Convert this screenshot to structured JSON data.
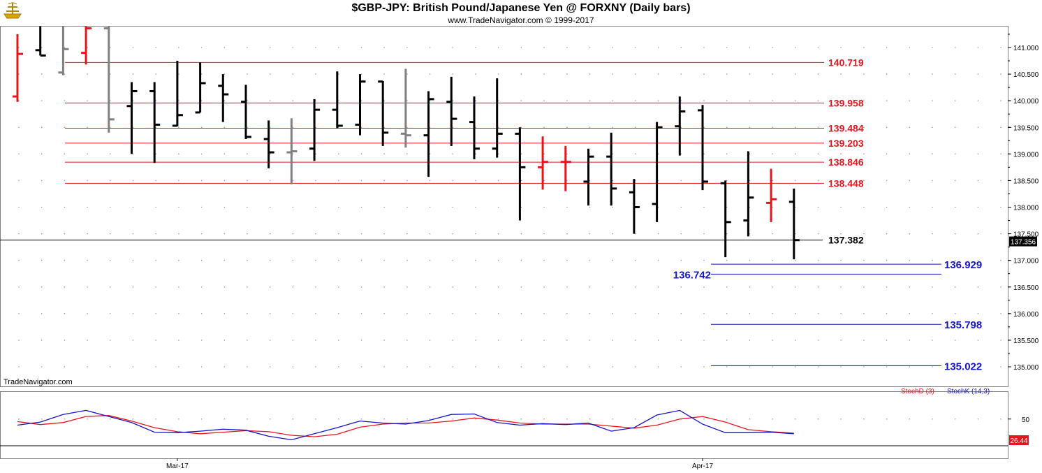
{
  "header": {
    "title": "$GBP-JPY:  British Pound/Japanese Yen @ FORXNY  (Daily bars)",
    "copyright": "www.TradeNavigator.com © 1999-2017"
  },
  "watermark": "TradeNavigator.com",
  "colors": {
    "up": "#000000",
    "down": "#e8141b",
    "neutral": "#808080",
    "resistance": "#e8141b",
    "support": "#1414c8",
    "stoch_d": "#e8141b",
    "stoch_k": "#1414c8"
  },
  "chart_data": [
    {
      "type": "bar",
      "title": "$GBP-JPY:  British Pound/Japanese Yen @ FORXNY  (Daily bars)",
      "ylim": [
        134.75,
        141.45
      ],
      "y_ticks": [
        "141.000",
        "140.500",
        "140.000",
        "139.500",
        "139.000",
        "138.500",
        "138.000",
        "137.500",
        "137.000",
        "136.500",
        "136.000",
        "135.500",
        "135.000"
      ],
      "x_labels": [
        {
          "label": "Mar-17",
          "bar": 7
        },
        {
          "label": "Apr-17",
          "bar": 30
        }
      ],
      "last_price": "137.356",
      "ohlc": [
        {
          "o": 140.08,
          "h": 141.25,
          "l": 139.98,
          "c": 140.88,
          "t": "down"
        },
        {
          "o": 140.95,
          "h": 141.4,
          "l": 140.85,
          "c": 140.85,
          "t": "up"
        },
        {
          "o": 140.53,
          "h": 141.4,
          "l": 140.48,
          "c": 140.97,
          "t": "neutral"
        },
        {
          "o": 140.9,
          "h": 141.4,
          "l": 140.68,
          "c": 141.36,
          "t": "down"
        },
        {
          "o": 141.36,
          "h": 141.4,
          "l": 139.4,
          "c": 139.65,
          "t": "neutral"
        },
        {
          "o": 139.9,
          "h": 140.35,
          "l": 139.0,
          "c": 140.18,
          "t": "up"
        },
        {
          "o": 140.18,
          "h": 140.35,
          "l": 138.83,
          "c": 139.55,
          "t": "up"
        },
        {
          "o": 139.53,
          "h": 140.75,
          "l": 139.52,
          "c": 139.73,
          "t": "up"
        },
        {
          "o": 139.78,
          "h": 140.72,
          "l": 139.78,
          "c": 140.33,
          "t": "up"
        },
        {
          "o": 140.28,
          "h": 140.5,
          "l": 139.6,
          "c": 140.12,
          "t": "up"
        },
        {
          "o": 139.98,
          "h": 140.3,
          "l": 139.28,
          "c": 139.32,
          "t": "up"
        },
        {
          "o": 139.28,
          "h": 139.63,
          "l": 138.73,
          "c": 139.03,
          "t": "up"
        },
        {
          "o": 139.03,
          "h": 139.67,
          "l": 138.43,
          "c": 139.05,
          "t": "neutral"
        },
        {
          "o": 139.1,
          "h": 140.03,
          "l": 138.87,
          "c": 139.83,
          "t": "up"
        },
        {
          "o": 139.83,
          "h": 140.55,
          "l": 139.48,
          "c": 139.53,
          "t": "up"
        },
        {
          "o": 139.55,
          "h": 140.5,
          "l": 139.35,
          "c": 140.36,
          "t": "up"
        },
        {
          "o": 140.36,
          "h": 140.37,
          "l": 139.15,
          "c": 139.4,
          "t": "up"
        },
        {
          "o": 139.38,
          "h": 140.6,
          "l": 139.12,
          "c": 139.35,
          "t": "neutral"
        },
        {
          "o": 139.35,
          "h": 140.18,
          "l": 138.57,
          "c": 140.03,
          "t": "up"
        },
        {
          "o": 139.98,
          "h": 140.45,
          "l": 139.15,
          "c": 139.66,
          "t": "up"
        },
        {
          "o": 139.6,
          "h": 140.08,
          "l": 138.9,
          "c": 139.1,
          "t": "up"
        },
        {
          "o": 139.1,
          "h": 140.42,
          "l": 138.93,
          "c": 139.38,
          "t": "up"
        },
        {
          "o": 139.38,
          "h": 139.5,
          "l": 137.75,
          "c": 138.75,
          "t": "up"
        },
        {
          "o": 138.75,
          "h": 139.33,
          "l": 138.33,
          "c": 138.85,
          "t": "down"
        },
        {
          "o": 138.85,
          "h": 139.15,
          "l": 138.3,
          "c": 138.85,
          "t": "down"
        },
        {
          "o": 138.48,
          "h": 139.1,
          "l": 138.03,
          "c": 138.95,
          "t": "up"
        },
        {
          "o": 138.95,
          "h": 139.4,
          "l": 138.03,
          "c": 138.35,
          "t": "up"
        },
        {
          "o": 138.28,
          "h": 138.53,
          "l": 137.5,
          "c": 138.0,
          "t": "up"
        },
        {
          "o": 138.06,
          "h": 139.6,
          "l": 137.72,
          "c": 139.5,
          "t": "up"
        },
        {
          "o": 139.52,
          "h": 140.08,
          "l": 138.97,
          "c": 139.8,
          "t": "up"
        },
        {
          "o": 139.82,
          "h": 139.92,
          "l": 138.32,
          "c": 138.48,
          "t": "up"
        },
        {
          "o": 138.45,
          "h": 138.5,
          "l": 137.06,
          "c": 137.72,
          "t": "up"
        },
        {
          "o": 137.75,
          "h": 139.05,
          "l": 137.45,
          "c": 138.18,
          "t": "up"
        },
        {
          "o": 138.08,
          "h": 138.72,
          "l": 137.72,
          "c": 138.15,
          "t": "down"
        },
        {
          "o": 138.1,
          "h": 138.35,
          "l": 137.02,
          "c": 137.38,
          "t": "up"
        }
      ],
      "levels": [
        {
          "value": 140.719,
          "label": "140.719",
          "kind": "resistance"
        },
        {
          "value": 139.958,
          "label": "139.958",
          "kind": "resistance"
        },
        {
          "value": 139.484,
          "label": "139.484",
          "kind": "resistance"
        },
        {
          "value": 139.203,
          "label": "139.203",
          "kind": "resistance"
        },
        {
          "value": 138.846,
          "label": "138.846",
          "kind": "resistance"
        },
        {
          "value": 138.448,
          "label": "138.448",
          "kind": "resistance"
        },
        {
          "value": 137.382,
          "label": "137.382",
          "kind": "current"
        },
        {
          "value": 136.929,
          "label": "136.929",
          "kind": "support"
        },
        {
          "value": 136.742,
          "label": "136.742",
          "kind": "support"
        },
        {
          "value": 135.798,
          "label": "135.798",
          "kind": "support"
        },
        {
          "value": 135.022,
          "label": "135.022",
          "kind": "support"
        }
      ]
    },
    {
      "type": "line",
      "ylim": [
        0,
        100
      ],
      "y_ticks": [
        "50"
      ],
      "last_value": "26.44",
      "series": [
        {
          "name": "StochD (3)",
          "values": [
            45,
            39,
            43,
            55,
            57,
            46,
            33,
            25,
            21,
            24,
            27,
            25,
            18,
            15,
            20,
            34,
            40,
            42,
            42,
            46,
            52,
            48,
            42,
            40,
            40,
            40,
            36,
            32,
            38,
            50,
            55,
            44,
            29,
            25,
            22
          ]
        },
        {
          "name": "StochK (14,3)",
          "values": [
            38,
            44,
            59,
            67,
            55,
            43,
            24,
            23,
            26,
            30,
            28,
            16,
            9,
            21,
            33,
            46,
            42,
            40,
            47,
            59,
            60,
            43,
            38,
            41,
            39,
            42,
            26,
            33,
            58,
            67,
            40,
            23,
            23,
            24,
            21
          ]
        }
      ]
    }
  ]
}
